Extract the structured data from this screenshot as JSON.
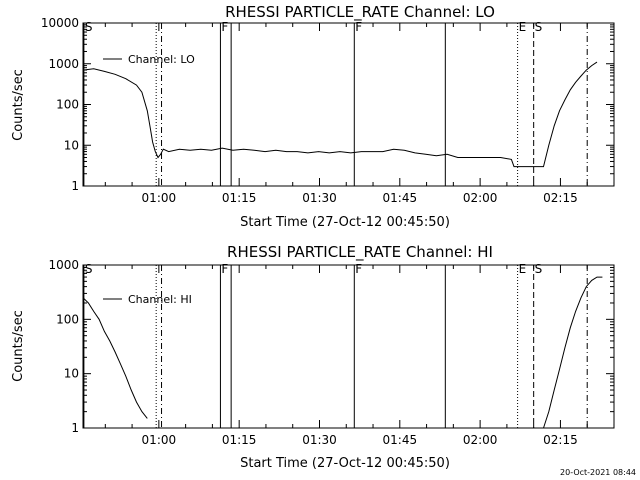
{
  "stamp": "20-Oct-2021 08:44",
  "chart_data": [
    {
      "type": "line",
      "title": "RHESSI PARTICLE_RATE Channel: LO",
      "xlabel": "Start Time (27-Oct-12 00:45:50)",
      "ylabel": "Counts/sec",
      "yscale": "log",
      "ylim": [
        1,
        10000
      ],
      "xlim_minutes_after_start": [
        0,
        99.17
      ],
      "x_ticks": [
        "01:00",
        "01:15",
        "01:30",
        "01:45",
        "02:00",
        "02:15"
      ],
      "y_ticks": [
        "1",
        "10",
        "100",
        "1000",
        "10000"
      ],
      "legend": {
        "entry": "Channel: LO",
        "placement": "top-left"
      },
      "annotations": [
        {
          "label": "S",
          "time": "00:46",
          "style": "solid"
        },
        {
          "label": "",
          "time": "00:59:30",
          "style": "dotted"
        },
        {
          "label": "",
          "time": "01:00:30",
          "style": "dash-dot"
        },
        {
          "label": "F",
          "time": "01:11:30",
          "style": "solid"
        },
        {
          "label": "",
          "time": "01:13:30",
          "style": "solid"
        },
        {
          "label": "F",
          "time": "01:36:30",
          "style": "solid"
        },
        {
          "label": "",
          "time": "01:53:30",
          "style": "solid"
        },
        {
          "label": "E",
          "time": "02:07",
          "style": "dotted"
        },
        {
          "label": "S",
          "time": "02:10",
          "style": "dashed"
        },
        {
          "label": "",
          "time": "02:20",
          "style": "dash-dot"
        }
      ],
      "series": [
        {
          "name": "Channel: LO",
          "x": [
            0,
            2,
            4,
            6,
            8,
            10,
            11,
            12,
            12.5,
            13,
            13.5,
            14,
            14.5,
            15,
            16,
            18,
            20,
            22,
            24,
            26,
            28,
            30,
            32,
            34,
            36,
            38,
            40,
            42,
            44,
            46,
            48,
            50,
            52,
            54,
            56,
            58,
            60,
            62,
            64,
            66,
            68,
            70,
            72,
            74,
            76,
            78,
            80,
            80.5,
            83,
            85,
            86,
            87,
            88,
            89,
            90,
            91,
            92,
            93,
            94,
            95,
            96
          ],
          "y": [
            700,
            750,
            650,
            550,
            430,
            300,
            200,
            70,
            30,
            12,
            7,
            5,
            6,
            8,
            7,
            8,
            7.5,
            8,
            7.5,
            8.5,
            7.5,
            8,
            7.5,
            7,
            7.5,
            7,
            7,
            6.5,
            7,
            6.5,
            7,
            6.5,
            7,
            7,
            7,
            8,
            7.5,
            6.5,
            6,
            5.5,
            6,
            5,
            5,
            5,
            5,
            5,
            4.5,
            3,
            3,
            3,
            3,
            10,
            30,
            70,
            130,
            230,
            350,
            500,
            700,
            900,
            1100
          ]
        }
      ]
    },
    {
      "type": "line",
      "title": "RHESSI PARTICLE_RATE Channel: HI",
      "xlabel": "Start Time (27-Oct-12 00:45:50)",
      "ylabel": "Counts/sec",
      "yscale": "log",
      "ylim": [
        1,
        1000
      ],
      "xlim_minutes_after_start": [
        0,
        99.17
      ],
      "x_ticks": [
        "01:00",
        "01:15",
        "01:30",
        "01:45",
        "02:00",
        "02:15"
      ],
      "y_ticks": [
        "1",
        "10",
        "100",
        "1000"
      ],
      "legend": {
        "entry": "Channel: HI",
        "placement": "top-left"
      },
      "annotations": [
        {
          "label": "S",
          "time": "00:46",
          "style": "solid"
        },
        {
          "label": "",
          "time": "00:59:30",
          "style": "dotted"
        },
        {
          "label": "",
          "time": "01:00:30",
          "style": "dash-dot"
        },
        {
          "label": "F",
          "time": "01:11:30",
          "style": "solid"
        },
        {
          "label": "",
          "time": "01:13:30",
          "style": "solid"
        },
        {
          "label": "F",
          "time": "01:36:30",
          "style": "solid"
        },
        {
          "label": "",
          "time": "01:53:30",
          "style": "solid"
        },
        {
          "label": "E",
          "time": "02:07",
          "style": "dotted"
        },
        {
          "label": "S",
          "time": "02:10",
          "style": "dashed"
        },
        {
          "label": "",
          "time": "02:20",
          "style": "dash-dot"
        }
      ],
      "series": [
        {
          "name": "Channel: HI",
          "x": [
            0,
            1,
            2,
            3,
            4,
            5,
            6,
            7,
            8,
            9,
            10,
            11,
            12,
            13,
            14,
            15,
            16,
            17,
            18,
            19,
            20,
            21,
            22,
            23,
            24,
            25,
            26,
            27,
            28,
            29,
            30,
            31,
            32,
            33,
            34,
            35,
            36,
            37,
            38,
            39,
            40,
            41,
            42,
            43,
            44,
            45,
            46,
            47,
            48,
            49,
            50,
            51,
            52,
            53,
            54,
            55,
            56,
            57,
            58,
            59,
            60,
            61,
            62,
            63,
            64,
            65,
            66,
            67,
            68,
            69,
            70,
            71,
            72,
            73,
            74,
            75,
            76,
            77,
            78,
            79,
            80,
            81,
            82,
            83,
            84,
            85,
            86,
            87,
            88,
            89,
            90,
            91,
            92,
            93,
            94,
            95,
            96,
            97,
            98,
            99
          ],
          "y": [
            250,
            200,
            140,
            100,
            60,
            40,
            25,
            15,
            9,
            5,
            3,
            2,
            1.5,
            null,
            null,
            null,
            null,
            null,
            null,
            null,
            null,
            null,
            null,
            null,
            null,
            null,
            null,
            null,
            null,
            null,
            null,
            null,
            null,
            null,
            null,
            null,
            null,
            null,
            null,
            null,
            null,
            null,
            null,
            null,
            null,
            null,
            null,
            null,
            null,
            null,
            null,
            null,
            null,
            null,
            null,
            null,
            null,
            null,
            null,
            null,
            null,
            null,
            null,
            null,
            null,
            null,
            null,
            null,
            null,
            null,
            null,
            null,
            null,
            null,
            null,
            null,
            null,
            null,
            null,
            null,
            null,
            null,
            null,
            null,
            null,
            null,
            1,
            2,
            5,
            12,
            30,
            70,
            140,
            250,
            400,
            520,
            600,
            600,
            null,
            null
          ]
        }
      ]
    }
  ]
}
